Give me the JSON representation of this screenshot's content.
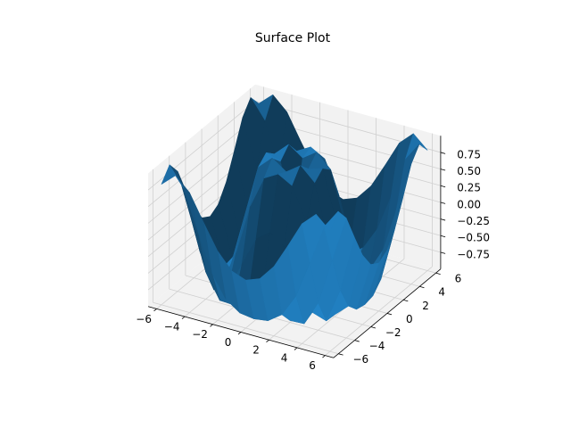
{
  "chart_data": {
    "type": "surface",
    "title": "Surface Plot",
    "color": "#1f77b4",
    "grid": true,
    "x": [
      -6,
      -5,
      -4,
      -3,
      -2,
      -1,
      0,
      1,
      2,
      3,
      4,
      5,
      6
    ],
    "y": [
      -6,
      -5,
      -4,
      -3,
      -2,
      -1,
      0,
      1,
      2,
      3,
      4,
      5,
      6
    ],
    "z": [
      [
        0.81,
        1,
        0.8,
        0.41,
        0.04,
        -0.2,
        -0.28,
        -0.2,
        0.04,
        0.41,
        0.8,
        1,
        0.81
      ],
      [
        1,
        0.71,
        0.12,
        -0.44,
        -0.78,
        -0.93,
        -0.96,
        -0.93,
        -0.78,
        -0.44,
        0.12,
        0.71,
        1
      ],
      [
        0.8,
        0.12,
        -0.59,
        -0.96,
        -0.97,
        -0.83,
        -0.76,
        -0.83,
        -0.97,
        -0.96,
        -0.59,
        0.12,
        0.8
      ],
      [
        0.41,
        -0.44,
        -0.96,
        -0.89,
        -0.45,
        -0.02,
        0.14,
        -0.02,
        -0.45,
        -0.89,
        -0.96,
        -0.44,
        0.41
      ],
      [
        0.04,
        -0.78,
        -0.97,
        -0.45,
        0.31,
        0.79,
        0.91,
        0.79,
        0.31,
        -0.45,
        -0.97,
        -0.78,
        0.04
      ],
      [
        -0.2,
        -0.93,
        -0.83,
        -0.02,
        0.79,
        0.99,
        0.84,
        0.99,
        0.79,
        -0.02,
        -0.83,
        -0.93,
        -0.2
      ],
      [
        -0.28,
        -0.96,
        -0.76,
        0.14,
        0.91,
        0.84,
        0,
        0.84,
        0.91,
        0.14,
        -0.76,
        -0.96,
        -0.28
      ],
      [
        -0.2,
        -0.93,
        -0.83,
        -0.02,
        0.79,
        0.99,
        0.84,
        0.99,
        0.79,
        -0.02,
        -0.83,
        -0.93,
        -0.2
      ],
      [
        0.04,
        -0.78,
        -0.97,
        -0.45,
        0.31,
        0.79,
        0.91,
        0.79,
        0.31,
        -0.45,
        -0.97,
        -0.78,
        0.04
      ],
      [
        0.41,
        -0.44,
        -0.96,
        -0.89,
        -0.45,
        -0.02,
        0.14,
        -0.02,
        -0.45,
        -0.89,
        -0.96,
        -0.44,
        0.41
      ],
      [
        0.8,
        0.12,
        -0.59,
        -0.96,
        -0.97,
        -0.83,
        -0.76,
        -0.83,
        -0.97,
        -0.96,
        -0.59,
        0.12,
        0.8
      ],
      [
        1,
        0.71,
        0.12,
        -0.44,
        -0.78,
        -0.93,
        -0.96,
        -0.93,
        -0.78,
        -0.44,
        0.12,
        0.71,
        1
      ],
      [
        0.81,
        1,
        0.8,
        0.41,
        0.04,
        -0.2,
        -0.28,
        -0.2,
        0.04,
        0.41,
        0.8,
        1,
        0.81
      ]
    ],
    "xlim": [
      -6.6,
      6.6
    ],
    "ylim": [
      -6.6,
      6.6
    ],
    "zlim": [
      -1,
      1
    ],
    "xticks": [
      {
        "value": -6,
        "label": "−6"
      },
      {
        "value": -4,
        "label": "−4"
      },
      {
        "value": -2,
        "label": "−2"
      },
      0,
      2,
      4,
      6
    ],
    "yticks": [
      {
        "value": -6,
        "label": "−6"
      },
      {
        "value": -4,
        "label": "−4"
      },
      {
        "value": -2,
        "label": "−2"
      },
      0,
      2,
      4,
      6
    ],
    "zticks": [
      {
        "value": -0.75,
        "label": "−0.75"
      },
      {
        "value": -0.5,
        "label": "−0.50"
      },
      {
        "value": -0.25,
        "label": "−0.25"
      },
      {
        "value": 0,
        "label": "0.00"
      },
      {
        "value": 0.25,
        "label": "0.25"
      },
      {
        "value": 0.5,
        "label": "0.50"
      },
      {
        "value": 0.75,
        "label": "0.75"
      }
    ]
  }
}
